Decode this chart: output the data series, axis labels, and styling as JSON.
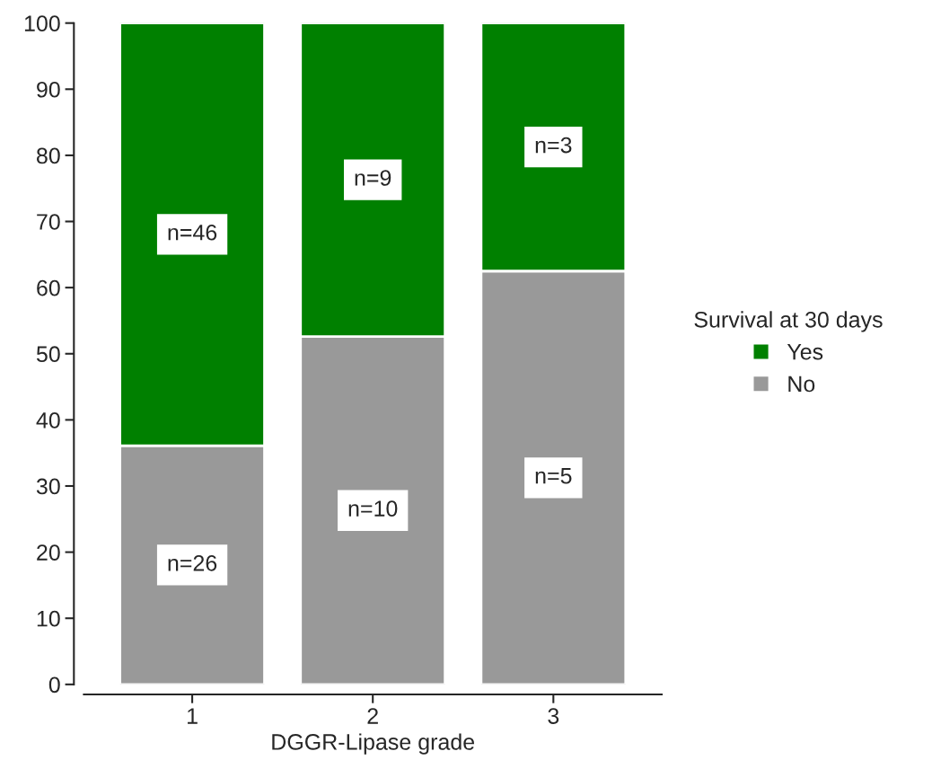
{
  "chart_data": {
    "type": "bar",
    "stacked": true,
    "xlabel": "DGGR-Lipase grade",
    "legend_title": "Survival at 30 days",
    "legend": "right",
    "categories": [
      "1",
      "2",
      "3"
    ],
    "series": [
      {
        "name": "No",
        "color": "#999999",
        "values": [
          36.1,
          52.6,
          62.5
        ]
      },
      {
        "name": "Yes",
        "color": "#008000",
        "values": [
          63.9,
          47.4,
          37.5
        ]
      }
    ],
    "annotations": [
      "n=26",
      "n=10",
      "n=5",
      "n=46",
      "n=9",
      "n=3"
    ],
    "ylim": [
      0,
      100
    ],
    "yticks": [
      0,
      10,
      20,
      30,
      40,
      50,
      60,
      70,
      80,
      90,
      100
    ],
    "grid": false
  }
}
